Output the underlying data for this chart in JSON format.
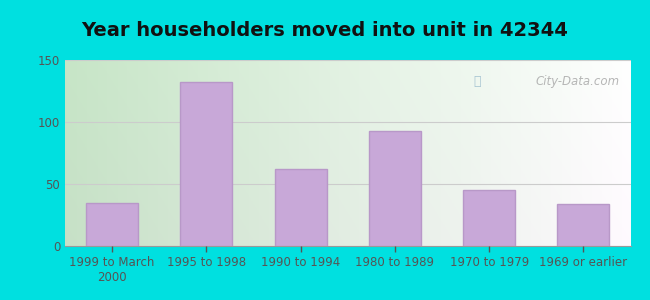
{
  "title": "Year householders moved into unit in 42344",
  "categories": [
    "1999 to March\n2000",
    "1995 to 1998",
    "1990 to 1994",
    "1980 to 1989",
    "1970 to 1979",
    "1969 or earlier"
  ],
  "values": [
    35,
    132,
    62,
    93,
    45,
    34
  ],
  "bar_color": "#c8a8d8",
  "bar_edgecolor": "#b898c8",
  "ylim": [
    0,
    150
  ],
  "yticks": [
    0,
    50,
    100,
    150
  ],
  "background_outer": "#00e0e0",
  "grid_color": "#cccccc",
  "title_fontsize": 14,
  "tick_fontsize": 8.5,
  "watermark_text": "City-Data.com",
  "watermark_color": "#aaaaaa",
  "bg_topleft": "#c8eec8",
  "bg_topright": "#f0f8ff",
  "bg_bottomleft": "#a8e8b8",
  "bg_bottomright": "#e8f8f8"
}
